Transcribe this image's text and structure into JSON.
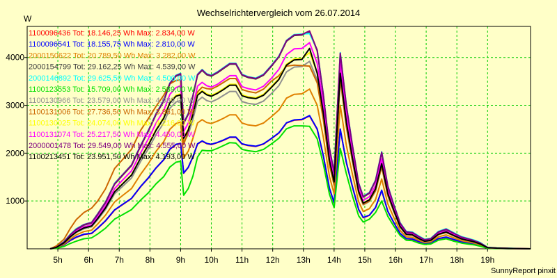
{
  "chart_data": {
    "type": "line",
    "title": "Wechselrichtervergleich vom 26.07.2014",
    "ylabel": "W",
    "xlabel": "",
    "credit": "SunnyReport pinxit",
    "grid": true,
    "legend_position": "top-left",
    "xlim": [
      4.0,
      20.4
    ],
    "ylim": [
      0,
      4650
    ],
    "x_ticks": [
      5,
      6,
      7,
      8,
      9,
      10,
      11,
      12,
      13,
      14,
      15,
      16,
      17,
      18,
      19
    ],
    "x_tick_labels": [
      "5h",
      "6h",
      "7h",
      "8h",
      "9h",
      "10h",
      "11h",
      "12h",
      "13h",
      "14h",
      "15h",
      "16h",
      "17h",
      "18h",
      "19h"
    ],
    "y_ticks": [
      1000,
      2000,
      3000,
      4000
    ],
    "y_tick_labels": [
      "1000",
      "2000",
      "3000",
      "4000"
    ],
    "x": [
      4.75,
      4.95,
      5.2,
      5.4,
      5.6,
      5.85,
      6.1,
      6.3,
      6.55,
      6.85,
      7.1,
      7.4,
      7.7,
      7.95,
      8.2,
      8.45,
      8.65,
      8.85,
      9.0,
      9.1,
      9.25,
      9.4,
      9.55,
      9.7,
      9.85,
      10.0,
      10.2,
      10.4,
      10.6,
      10.8,
      11.0,
      11.2,
      11.45,
      11.7,
      11.95,
      12.2,
      12.45,
      12.7,
      12.95,
      13.2,
      13.45,
      13.65,
      13.85,
      14.0,
      14.2,
      14.4,
      14.6,
      14.8,
      14.95,
      15.15,
      15.35,
      15.55,
      15.75,
      15.95,
      16.15,
      16.35,
      16.55,
      16.75,
      16.95,
      17.15,
      17.4,
      17.65,
      17.9,
      18.15,
      18.35,
      18.55,
      18.75,
      19.0,
      19.3,
      19.7,
      20.4
    ],
    "series": [
      {
        "name": "1100096436",
        "color": "#ff0000",
        "legend": "1100096436 Tot: 18.146,25 Wh Max: 2.834,00 W",
        "values": [
          0,
          20,
          85,
          170,
          240,
          300,
          320,
          430,
          580,
          810,
          920,
          1050,
          1300,
          1480,
          1690,
          1860,
          2080,
          2180,
          2200,
          1580,
          1700,
          1920,
          2190,
          2250,
          2200,
          2180,
          2220,
          2270,
          2330,
          2330,
          2190,
          2160,
          2140,
          2190,
          2300,
          2420,
          2630,
          2690,
          2700,
          2780,
          2500,
          1940,
          1260,
          960,
          2500,
          1800,
          1290,
          820,
          650,
          700,
          860,
          1220,
          780,
          540,
          320,
          210,
          200,
          150,
          110,
          120,
          210,
          240,
          190,
          140,
          120,
          100,
          70,
          15,
          10,
          5,
          0
        ]
      },
      {
        "name": "1100096541",
        "color": "#0000ff",
        "legend": "1100096541 Tot: 18.155,75 Wh Max: 2.810,00 W",
        "values": [
          0,
          22,
          90,
          175,
          245,
          305,
          325,
          435,
          585,
          815,
          925,
          1055,
          1305,
          1485,
          1695,
          1865,
          2085,
          2185,
          2205,
          1585,
          1705,
          1925,
          2195,
          2255,
          2205,
          2185,
          2225,
          2275,
          2335,
          2335,
          2195,
          2165,
          2145,
          2195,
          2305,
          2425,
          2635,
          2695,
          2705,
          2785,
          2505,
          1945,
          1265,
          965,
          2505,
          1805,
          1295,
          825,
          655,
          705,
          865,
          1225,
          785,
          545,
          325,
          215,
          205,
          155,
          115,
          125,
          215,
          245,
          195,
          145,
          125,
          105,
          75,
          15,
          10,
          5,
          0
        ]
      },
      {
        "name": "2000150622",
        "color": "#e08000",
        "legend": "2000150622 Tot: 20.789,50 Wh Max: 3.282,00 W",
        "values": [
          0,
          25,
          100,
          200,
          290,
          360,
          390,
          520,
          700,
          980,
          1110,
          1260,
          1560,
          1780,
          2040,
          2240,
          2500,
          2620,
          2650,
          1900,
          2040,
          2310,
          2630,
          2700,
          2640,
          2620,
          2670,
          2730,
          2800,
          2800,
          2630,
          2590,
          2570,
          2630,
          2760,
          2900,
          3150,
          3230,
          3240,
          3340,
          3000,
          2330,
          1510,
          1150,
          3000,
          2160,
          1550,
          985,
          780,
          840,
          1030,
          1460,
          940,
          650,
          385,
          250,
          240,
          180,
          130,
          145,
          250,
          290,
          230,
          170,
          145,
          120,
          85,
          18,
          12,
          6,
          0
        ]
      },
      {
        "name": "2000154799",
        "color": "#404040",
        "legend": "2000154799 Tot: 29.162,25 Wh Max: 4.539,00 W",
        "values": [
          0,
          30,
          140,
          280,
          400,
          495,
          540,
          720,
          960,
          1350,
          1530,
          1740,
          2150,
          2460,
          2810,
          3090,
          3450,
          3610,
          3650,
          2620,
          2810,
          3190,
          3630,
          3730,
          3640,
          3610,
          3680,
          3770,
          3860,
          3860,
          3630,
          3580,
          3550,
          3630,
          3810,
          4010,
          4340,
          4460,
          4470,
          4540,
          4140,
          3210,
          2090,
          1590,
          4080,
          2980,
          2140,
          1360,
          1080,
          1160,
          1420,
          2010,
          1300,
          900,
          530,
          345,
          330,
          250,
          180,
          200,
          345,
          400,
          315,
          235,
          200,
          165,
          115,
          25,
          15,
          8,
          0
        ]
      },
      {
        "name": "2000146892",
        "color": "#00ffff",
        "legend": "2000146892 Tot: 29.625,50 Wh Max: 4.500,00 W",
        "values": [
          0,
          35,
          150,
          300,
          420,
          510,
          555,
          735,
          975,
          1370,
          1545,
          1755,
          2170,
          2480,
          2830,
          3110,
          3470,
          3630,
          3670,
          2640,
          2830,
          3210,
          3650,
          3750,
          3660,
          3630,
          3700,
          3790,
          3880,
          3880,
          3650,
          3600,
          3570,
          3650,
          3830,
          4030,
          4360,
          4480,
          4490,
          4500,
          4160,
          3230,
          2110,
          1610,
          4100,
          3000,
          2160,
          1380,
          1100,
          1180,
          1440,
          2030,
          1320,
          920,
          550,
          365,
          350,
          270,
          200,
          220,
          365,
          420,
          335,
          255,
          220,
          185,
          135,
          30,
          18,
          10,
          0
        ]
      },
      {
        "name": "1100123553",
        "color": "#00e000",
        "legend": "1100123553 Tot: 15.709,00 Wh Max: 2.589,00 W",
        "values": [
          0,
          10,
          50,
          110,
          160,
          210,
          230,
          310,
          430,
          620,
          710,
          820,
          1020,
          1170,
          1360,
          1510,
          1710,
          1810,
          1830,
          1120,
          1260,
          1520,
          1920,
          2060,
          2050,
          2050,
          2100,
          2160,
          2220,
          2210,
          2080,
          2050,
          2030,
          2080,
          2190,
          2310,
          2510,
          2570,
          2570,
          2560,
          2300,
          1770,
          1140,
          860,
          2100,
          1570,
          1100,
          690,
          560,
          620,
          760,
          1000,
          680,
          470,
          280,
          180,
          170,
          120,
          90,
          100,
          180,
          210,
          160,
          120,
          100,
          85,
          55,
          10,
          5,
          3,
          0
        ]
      },
      {
        "name": "1100130966",
        "color": "#909090",
        "legend": "1100130966 Tot: 23.579,00 Wh Max: 4.089,00 W",
        "values": [
          0,
          28,
          120,
          240,
          340,
          420,
          460,
          610,
          820,
          1150,
          1300,
          1480,
          1830,
          2090,
          2390,
          2630,
          2940,
          3070,
          3100,
          2230,
          2390,
          2710,
          3090,
          3170,
          3100,
          3070,
          3130,
          3210,
          3290,
          3290,
          3080,
          3040,
          3020,
          3090,
          3240,
          3410,
          3700,
          3800,
          3810,
          3920,
          3530,
          2730,
          1780,
          1350,
          3530,
          2540,
          1820,
          1160,
          920,
          990,
          1210,
          1710,
          1110,
          770,
          450,
          295,
          280,
          210,
          150,
          170,
          295,
          340,
          270,
          200,
          170,
          140,
          100,
          22,
          13,
          7,
          0
        ]
      },
      {
        "name": "1100131006",
        "color": "#cc6600",
        "legend": "1100131006 Tot: 27.736,50 Wh Max: 3.861,00 W",
        "values": [
          0,
          60,
          200,
          420,
          610,
          760,
          850,
          1000,
          1250,
          1680,
          1860,
          2080,
          2480,
          2720,
          2980,
          3210,
          3450,
          3520,
          3530,
          2180,
          2460,
          2880,
          3280,
          3380,
          3350,
          3340,
          3400,
          3480,
          3560,
          3560,
          3330,
          3290,
          3260,
          3340,
          3500,
          3620,
          3820,
          3840,
          3830,
          3820,
          3470,
          2700,
          1760,
          1330,
          3570,
          2560,
          1830,
          1170,
          930,
          1000,
          1220,
          1720,
          1120,
          780,
          460,
          300,
          285,
          215,
          155,
          175,
          300,
          345,
          275,
          205,
          175,
          145,
          100,
          22,
          13,
          7,
          0
        ]
      },
      {
        "name": "1100130025",
        "color": "#ffff00",
        "legend": "1100130025 Tot: 24.074,00 Wh Max: 4.216,00 W",
        "values": [
          0,
          29,
          125,
          250,
          355,
          440,
          480,
          640,
          860,
          1200,
          1360,
          1550,
          1910,
          2190,
          2500,
          2750,
          3070,
          3210,
          3240,
          2330,
          2500,
          2830,
          3230,
          3310,
          3240,
          3210,
          3270,
          3350,
          3440,
          3440,
          3220,
          3180,
          3160,
          3230,
          3390,
          3560,
          3860,
          3970,
          3980,
          4100,
          3690,
          2860,
          1860,
          1410,
          3690,
          2650,
          1900,
          1210,
          960,
          1030,
          1260,
          1790,
          1160,
          800,
          470,
          305,
          295,
          220,
          160,
          180,
          305,
          355,
          280,
          210,
          180,
          150,
          105,
          23,
          14,
          7,
          0
        ]
      },
      {
        "name": "1100131074",
        "color": "#ff00ff",
        "legend": "1100131074 Tot: 25.217,50 Wh Max: 4.450,00 W",
        "values": [
          0,
          32,
          130,
          260,
          370,
          460,
          500,
          670,
          900,
          1260,
          1430,
          1630,
          2010,
          2300,
          2630,
          2890,
          3230,
          3370,
          3410,
          2450,
          2630,
          2980,
          3400,
          3480,
          3410,
          3380,
          3440,
          3530,
          3620,
          3620,
          3390,
          3350,
          3320,
          3400,
          3560,
          3750,
          4060,
          4180,
          4190,
          4310,
          3880,
          3010,
          1960,
          1490,
          3880,
          2790,
          2000,
          1270,
          1010,
          1090,
          1330,
          1880,
          1220,
          840,
          500,
          320,
          310,
          235,
          170,
          190,
          320,
          370,
          295,
          220,
          190,
          155,
          110,
          24,
          14,
          7,
          0
        ]
      },
      {
        "name": "2000001478",
        "color": "#800080",
        "legend": "2000001478 Tot: 29.549,00 Wh Max: 4.555,00 W",
        "values": [
          0,
          31,
          145,
          290,
          410,
          505,
          550,
          730,
          970,
          1360,
          1540,
          1750,
          2160,
          2470,
          2820,
          3100,
          3460,
          3620,
          3660,
          2630,
          2820,
          3200,
          3640,
          3740,
          3650,
          3620,
          3690,
          3780,
          3870,
          3870,
          3640,
          3590,
          3560,
          3640,
          3820,
          4020,
          4350,
          4470,
          4480,
          4555,
          4150,
          3220,
          2100,
          1600,
          4090,
          2990,
          2150,
          1370,
          1090,
          1170,
          1430,
          2020,
          1310,
          910,
          540,
          355,
          340,
          260,
          190,
          210,
          355,
          410,
          325,
          245,
          210,
          175,
          125,
          28,
          16,
          9,
          0
        ]
      },
      {
        "name": "1100213451",
        "color": "#000000",
        "legend": "1100213451 Tot: 23.951,50 Wh Max: 4.193,00 W",
        "values": [
          0,
          29,
          124,
          248,
          352,
          436,
          476,
          634,
          852,
          1190,
          1350,
          1540,
          1900,
          2170,
          2480,
          2730,
          3050,
          3190,
          3220,
          2310,
          2480,
          2810,
          3210,
          3290,
          3220,
          3190,
          3250,
          3330,
          3420,
          3420,
          3200,
          3160,
          3140,
          3210,
          3370,
          3540,
          3840,
          3950,
          3960,
          4190,
          3670,
          2840,
          1850,
          1400,
          3670,
          2640,
          1890,
          1200,
          955,
          1025,
          1255,
          1780,
          1155,
          795,
          468,
          303,
          293,
          218,
          158,
          178,
          303,
          353,
          278,
          208,
          178,
          148,
          103,
          23,
          14,
          7,
          0
        ]
      }
    ]
  }
}
